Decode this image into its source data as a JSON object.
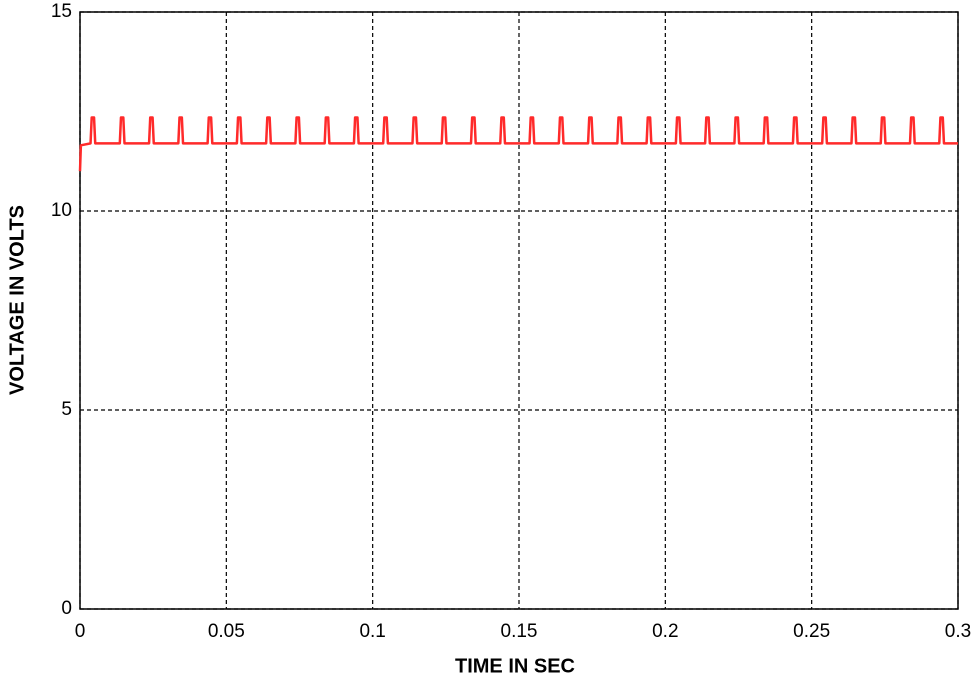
{
  "chart_data": {
    "type": "line",
    "xlabel": "TIME IN SEC",
    "ylabel": "VOLTAGE IN VOLTS",
    "xlim": [
      0,
      0.3
    ],
    "xticks": [
      0,
      0.05,
      0.1,
      0.15,
      0.2,
      0.25,
      0.3
    ],
    "ylim": [
      0,
      15
    ],
    "yticks": [
      0,
      5,
      10,
      15
    ],
    "grid": true,
    "x": [
      0,
      0.0003,
      0.0036,
      0.004,
      0.0048,
      0.0052,
      0.0136,
      0.014,
      0.0148,
      0.0152,
      0.0236,
      0.024,
      0.0248,
      0.0252,
      0.0336,
      0.034,
      0.0348,
      0.0352,
      0.0436,
      0.044,
      0.0448,
      0.0452,
      0.0536,
      0.054,
      0.0548,
      0.0552,
      0.0636,
      0.064,
      0.0648,
      0.0652,
      0.0736,
      0.074,
      0.0748,
      0.0752,
      0.0836,
      0.084,
      0.0848,
      0.0852,
      0.0936,
      0.094,
      0.0948,
      0.0952,
      0.1036,
      0.104,
      0.1048,
      0.1052,
      0.1136,
      0.114,
      0.1148,
      0.1152,
      0.1236,
      0.124,
      0.1248,
      0.1252,
      0.1336,
      0.134,
      0.1348,
      0.1352,
      0.1436,
      0.144,
      0.1448,
      0.1452,
      0.1536,
      0.154,
      0.1548,
      0.1552,
      0.1636,
      0.164,
      0.1648,
      0.1652,
      0.1736,
      0.174,
      0.1748,
      0.1752,
      0.1836,
      0.184,
      0.1848,
      0.1852,
      0.1936,
      0.194,
      0.1948,
      0.1952,
      0.2036,
      0.204,
      0.2048,
      0.2052,
      0.2136,
      0.214,
      0.2148,
      0.2152,
      0.2236,
      0.224,
      0.2248,
      0.2252,
      0.2336,
      0.234,
      0.2348,
      0.2352,
      0.2436,
      0.244,
      0.2448,
      0.2452,
      0.2536,
      0.254,
      0.2548,
      0.2552,
      0.2636,
      0.264,
      0.2648,
      0.2652,
      0.2736,
      0.274,
      0.2748,
      0.2752,
      0.2836,
      0.284,
      0.2848,
      0.2852,
      0.2936,
      0.294,
      0.2948,
      0.2952,
      0.3
    ],
    "series": [
      {
        "color": "#ff2a2a",
        "values": [
          11.0,
          11.65,
          11.7,
          12.35,
          12.35,
          11.7,
          11.7,
          12.35,
          12.35,
          11.7,
          11.7,
          12.35,
          12.35,
          11.7,
          11.7,
          12.35,
          12.35,
          11.7,
          11.7,
          12.35,
          12.35,
          11.7,
          11.7,
          12.35,
          12.35,
          11.7,
          11.7,
          12.35,
          12.35,
          11.7,
          11.7,
          12.35,
          12.35,
          11.7,
          11.7,
          12.35,
          12.35,
          11.7,
          11.7,
          12.35,
          12.35,
          11.7,
          11.7,
          12.35,
          12.35,
          11.7,
          11.7,
          12.35,
          12.35,
          11.7,
          11.7,
          12.35,
          12.35,
          11.7,
          11.7,
          12.35,
          12.35,
          11.7,
          11.7,
          12.35,
          12.35,
          11.7,
          11.7,
          12.35,
          12.35,
          11.7,
          11.7,
          12.35,
          12.35,
          11.7,
          11.7,
          12.35,
          12.35,
          11.7,
          11.7,
          12.35,
          12.35,
          11.7,
          11.7,
          12.35,
          12.35,
          11.7,
          11.7,
          12.35,
          12.35,
          11.7,
          11.7,
          12.35,
          12.35,
          11.7,
          11.7,
          12.35,
          12.35,
          11.7,
          11.7,
          12.35,
          12.35,
          11.7,
          11.7,
          12.35,
          12.35,
          11.7,
          11.7,
          12.35,
          12.35,
          11.7,
          11.7,
          12.35,
          12.35,
          11.7,
          11.7,
          12.35,
          12.35,
          11.7,
          11.7,
          12.35,
          12.35,
          11.7,
          11.7,
          12.35,
          12.35,
          11.7,
          11.7
        ]
      }
    ]
  }
}
